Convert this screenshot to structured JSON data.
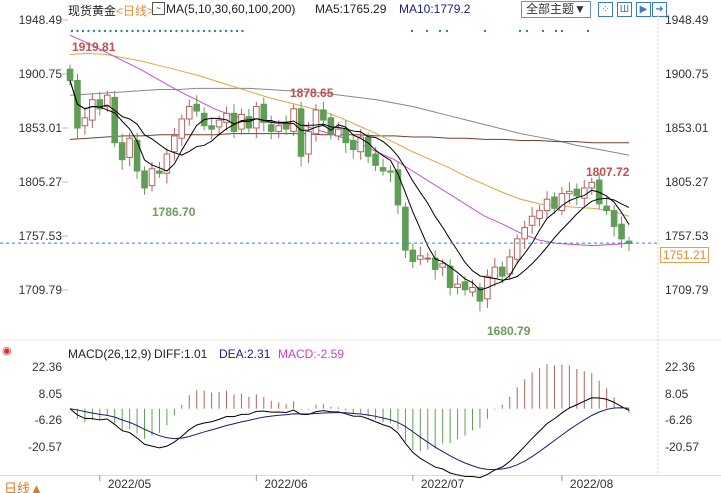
{
  "header": {
    "title": "现货黄金",
    "period": "<日线>",
    "ma_label": "MA(5,10,30,60,100,200)",
    "ma5": "MA5:1765.29",
    "ma10": "MA10:1779.2",
    "theme_button": "全部主题▼"
  },
  "macd_header": {
    "label": "MACD(26,12,9)",
    "diff": "DIFF:1.01",
    "dea": "DEA:2.31",
    "macd": "MACD:-2.59"
  },
  "footer": {
    "period": "日线▲"
  },
  "colors": {
    "up": "#b5625e",
    "down": "#5f9e55",
    "ma5": "#000000",
    "ma10": "#000000",
    "ma30": "#e2a347",
    "ma60": "#c94fd0",
    "ma100": "#7a3a2c",
    "ma200": "#888888",
    "dea": "#1b1b6b",
    "current": "#3a7dc9"
  },
  "chart_data": {
    "type": "candlestick",
    "price_axis": {
      "ticks": [
        "1948.49",
        "1900.75",
        "1853.01",
        "1805.27",
        "1757.53",
        "1709.79"
      ],
      "values": [
        1948.49,
        1900.75,
        1853.01,
        1805.27,
        1757.53,
        1709.79
      ],
      "range": [
        1709.79,
        1948.49
      ]
    },
    "current_price": "1751.21",
    "current_value": 1751.21,
    "annotations": {
      "high_label": "1919.81",
      "high2_label": "1878.65",
      "low1_label": "1786.70",
      "low2_label": "1680.79",
      "recent_high_label": "1807.72"
    },
    "x_labels": [
      "2022/05",
      "2022/06",
      "2022/07",
      "2022/08"
    ],
    "x_label_index": [
      4,
      25,
      46,
      66
    ],
    "closes": [
      1895,
      1853,
      1862,
      1878,
      1870,
      1882,
      1840,
      1825,
      1844,
      1815,
      1800,
      1817,
      1813,
      1830,
      1846,
      1861,
      1872,
      1868,
      1855,
      1852,
      1860,
      1866,
      1850,
      1865,
      1853,
      1872,
      1858,
      1850,
      1855,
      1852,
      1870,
      1828,
      1850,
      1869,
      1860,
      1848,
      1852,
      1840,
      1834,
      1845,
      1828,
      1820,
      1815,
      1814,
      1785,
      1745,
      1735,
      1740,
      1738,
      1728,
      1733,
      1712,
      1715,
      1710,
      1712,
      1700,
      1722,
      1730,
      1722,
      1739,
      1755,
      1765,
      1775,
      1780,
      1790,
      1782,
      1795,
      1797,
      1793,
      1800,
      1805,
      1786,
      1780,
      1766,
      1755,
      1751
    ],
    "ma_lines": {
      "ma30": [
        1918,
        1919,
        1918,
        1915,
        1912,
        1908,
        1904,
        1900,
        1895,
        1890,
        1885,
        1880,
        1876,
        1872,
        1868,
        1862,
        1855,
        1848,
        1840,
        1832,
        1825,
        1818,
        1810,
        1803,
        1796,
        1790,
        1786,
        1784,
        1783,
        1782,
        1780,
        1775
      ],
      "ma60": [
        1935,
        1928,
        1920,
        1912,
        1904,
        1895,
        1886,
        1878,
        1870,
        1864,
        1860,
        1858,
        1856,
        1855,
        1850,
        1845,
        1840,
        1832,
        1825,
        1815,
        1805,
        1795,
        1785,
        1775,
        1768,
        1760,
        1754,
        1751,
        1750,
        1749,
        1750,
        1751
      ],
      "ma100": [
        1843,
        1844,
        1845,
        1846,
        1846,
        1847,
        1847,
        1847,
        1847,
        1848,
        1848,
        1848,
        1848,
        1848,
        1847,
        1847,
        1847,
        1846,
        1846,
        1845,
        1845,
        1844,
        1844,
        1843,
        1843,
        1842,
        1842,
        1841,
        1841,
        1840,
        1840,
        1840
      ],
      "ma200": [
        1882,
        1883,
        1884,
        1885,
        1886,
        1887,
        1887,
        1888,
        1888,
        1888,
        1888,
        1887,
        1886,
        1885,
        1884,
        1882,
        1880,
        1878,
        1875,
        1872,
        1868,
        1864,
        1860,
        1856,
        1852,
        1848,
        1845,
        1842,
        1838,
        1835,
        1832,
        1829
      ]
    },
    "macd_axis": {
      "ticks": [
        "22.36",
        "8.05",
        "-6.26",
        "-20.57"
      ],
      "values": [
        22.36,
        8.05,
        -6.26,
        -20.57
      ]
    }
  }
}
